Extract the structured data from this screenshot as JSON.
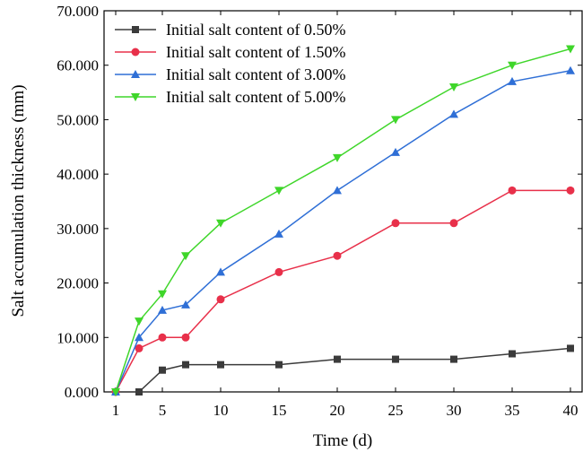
{
  "chart_data": {
    "type": "line",
    "xlabel": "Time (d)",
    "ylabel": "Salt accumulation thickness (mm)",
    "x": [
      1,
      3,
      5,
      7,
      10,
      15,
      20,
      25,
      30,
      35,
      40
    ],
    "xticks": [
      1,
      5,
      10,
      15,
      20,
      25,
      30,
      35,
      40
    ],
    "xlim": [
      0,
      41
    ],
    "ylim": [
      0,
      70
    ],
    "yticks": [
      "0.000",
      "10.000",
      "20.000",
      "30.000",
      "40.000",
      "50.000",
      "60.000",
      "70.000"
    ],
    "grid": false,
    "legend_position": "top-left",
    "series": [
      {
        "name": "Initial salt content of 0.50%",
        "color": "#3b3b3b",
        "marker": "square",
        "values": [
          0,
          0,
          4,
          5,
          5,
          5,
          6,
          6,
          6,
          7,
          8
        ]
      },
      {
        "name": "Initial salt content of 1.50%",
        "color": "#e8304a",
        "marker": "circle",
        "values": [
          0,
          8,
          10,
          10,
          17,
          22,
          25,
          31,
          31,
          37,
          37
        ]
      },
      {
        "name": "Initial salt content of 3.00%",
        "color": "#2f6fd6",
        "marker": "triangle-up",
        "values": [
          0,
          10,
          15,
          16,
          22,
          29,
          37,
          44,
          51,
          57,
          59
        ]
      },
      {
        "name": "Initial salt content of 5.00%",
        "color": "#3fd62a",
        "marker": "triangle-down",
        "values": [
          0,
          13,
          18,
          25,
          31,
          37,
          43,
          50,
          56,
          60,
          63
        ]
      }
    ]
  }
}
